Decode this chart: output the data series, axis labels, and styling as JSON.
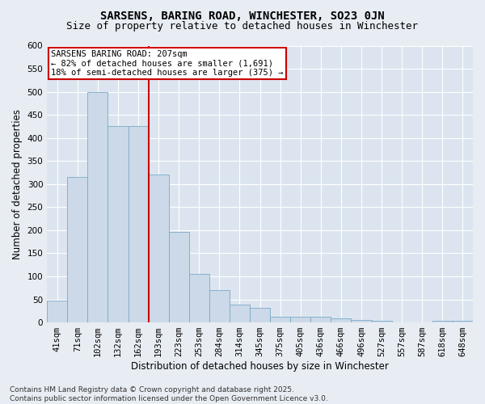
{
  "title": "SARSENS, BARING ROAD, WINCHESTER, SO23 0JN",
  "subtitle": "Size of property relative to detached houses in Winchester",
  "xlabel": "Distribution of detached houses by size in Winchester",
  "ylabel": "Number of detached properties",
  "categories": [
    "41sqm",
    "71sqm",
    "102sqm",
    "132sqm",
    "162sqm",
    "193sqm",
    "223sqm",
    "253sqm",
    "284sqm",
    "314sqm",
    "345sqm",
    "375sqm",
    "405sqm",
    "436sqm",
    "466sqm",
    "496sqm",
    "527sqm",
    "557sqm",
    "587sqm",
    "618sqm",
    "648sqm"
  ],
  "values": [
    47,
    315,
    500,
    425,
    425,
    320,
    197,
    105,
    70,
    38,
    32,
    13,
    12,
    12,
    9,
    5,
    4,
    1,
    0,
    3,
    4
  ],
  "bar_color": "#ccd9e8",
  "bar_edge_color": "#7aaac8",
  "vline_x_index": 5,
  "vline_color": "#cc0000",
  "annotation_text": "SARSENS BARING ROAD: 207sqm\n← 82% of detached houses are smaller (1,691)\n18% of semi-detached houses are larger (375) →",
  "annotation_box_color": "#cc0000",
  "ylim": [
    0,
    600
  ],
  "yticks": [
    0,
    50,
    100,
    150,
    200,
    250,
    300,
    350,
    400,
    450,
    500,
    550,
    600
  ],
  "bg_color": "#e8edf3",
  "plot_bg_color": "#dce5ef",
  "grid_color": "#ffffff",
  "footer": "Contains HM Land Registry data © Crown copyright and database right 2025.\nContains public sector information licensed under the Open Government Licence v3.0.",
  "title_fontsize": 10,
  "subtitle_fontsize": 9,
  "axis_label_fontsize": 8.5,
  "tick_fontsize": 7.5,
  "annotation_fontsize": 7.5,
  "footer_fontsize": 6.5
}
